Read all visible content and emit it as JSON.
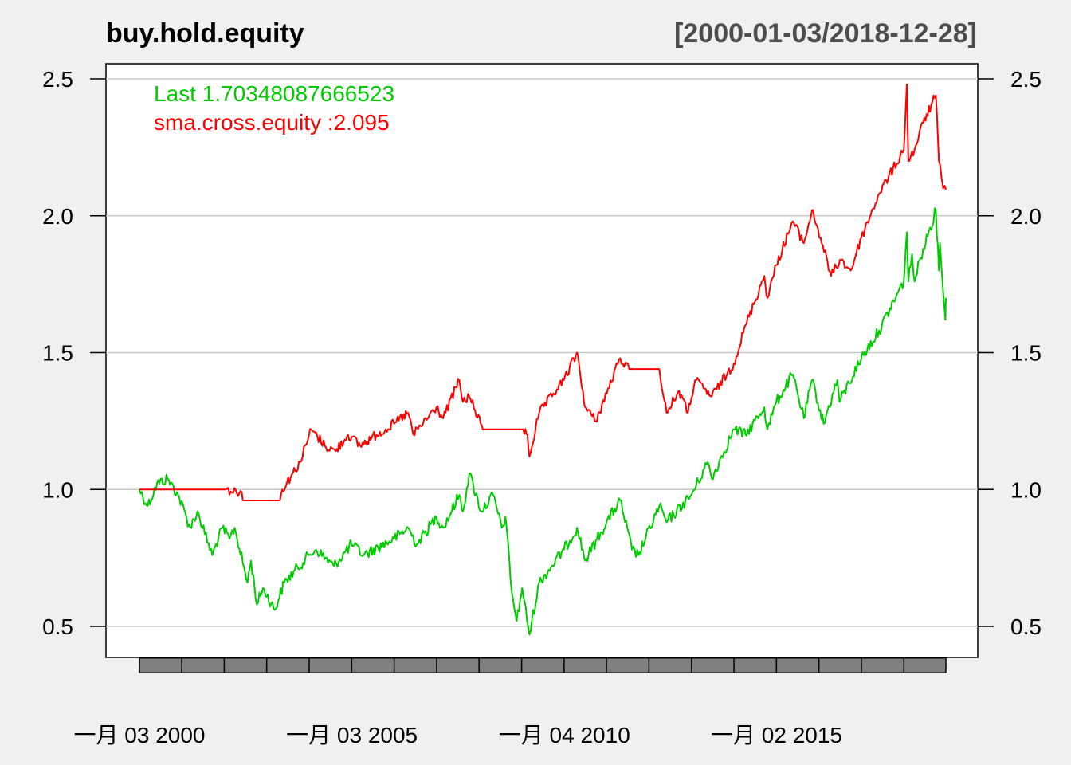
{
  "chart_data": {
    "type": "line",
    "title": "buy.hold.equity",
    "date_range_label": "[2000-01-03/2018-12-28]",
    "x_start": "2000-01-03",
    "x_end": "2018-12-28",
    "ylim": [
      0.36,
      2.58
    ],
    "y_ticks": [
      "0.5",
      "1.0",
      "1.5",
      "2.0",
      "2.5"
    ],
    "y_tick_values": [
      0.5,
      1.0,
      1.5,
      2.0,
      2.5
    ],
    "x_tick_labels": [
      {
        "label": "一月 03 2000",
        "date": "2000-01-03"
      },
      {
        "label": "一月 03 2005",
        "date": "2005-01-03"
      },
      {
        "label": "一月 04 2010",
        "date": "2010-01-04"
      },
      {
        "label": "一月 02 2015",
        "date": "2015-01-02"
      }
    ],
    "grid": true,
    "legend": [
      {
        "text": "Last 1.70348087666523",
        "color": "#00cc00"
      },
      {
        "text": "sma.cross.equity :2.095",
        "color": "#ff0000"
      }
    ],
    "series": [
      {
        "name": "buy.hold.equity",
        "color": "#00cc00",
        "points": [
          [
            "2000-01-03",
            1.0
          ],
          [
            "2000-03-15",
            0.94
          ],
          [
            "2000-06-01",
            1.02
          ],
          [
            "2000-09-01",
            1.04
          ],
          [
            "2000-12-01",
            0.98
          ],
          [
            "2001-03-15",
            0.86
          ],
          [
            "2001-05-15",
            0.92
          ],
          [
            "2001-09-20",
            0.76
          ],
          [
            "2001-12-15",
            0.86
          ],
          [
            "2002-02-15",
            0.82
          ],
          [
            "2002-04-01",
            0.86
          ],
          [
            "2002-07-20",
            0.66
          ],
          [
            "2002-08-20",
            0.74
          ],
          [
            "2002-10-09",
            0.58
          ],
          [
            "2002-12-01",
            0.64
          ],
          [
            "2003-03-11",
            0.56
          ],
          [
            "2003-06-01",
            0.66
          ],
          [
            "2003-12-31",
            0.76
          ],
          [
            "2004-03-01",
            0.78
          ],
          [
            "2004-08-01",
            0.72
          ],
          [
            "2004-12-31",
            0.8
          ],
          [
            "2005-04-15",
            0.76
          ],
          [
            "2005-12-31",
            0.82
          ],
          [
            "2006-05-01",
            0.86
          ],
          [
            "2006-07-15",
            0.8
          ],
          [
            "2006-12-31",
            0.9
          ],
          [
            "2007-02-27",
            0.86
          ],
          [
            "2007-07-15",
            0.98
          ],
          [
            "2007-08-15",
            0.92
          ],
          [
            "2007-10-09",
            1.06
          ],
          [
            "2008-01-20",
            0.92
          ],
          [
            "2008-05-01",
            0.98
          ],
          [
            "2008-07-15",
            0.86
          ],
          [
            "2008-08-15",
            0.9
          ],
          [
            "2008-10-10",
            0.62
          ],
          [
            "2008-11-20",
            0.52
          ],
          [
            "2009-01-06",
            0.64
          ],
          [
            "2009-03-09",
            0.47
          ],
          [
            "2009-06-01",
            0.66
          ],
          [
            "2009-12-31",
            0.78
          ],
          [
            "2010-04-23",
            0.86
          ],
          [
            "2010-07-02",
            0.74
          ],
          [
            "2010-12-31",
            0.88
          ],
          [
            "2011-04-29",
            0.96
          ],
          [
            "2011-08-08",
            0.78
          ],
          [
            "2011-10-03",
            0.76
          ],
          [
            "2012-03-30",
            0.94
          ],
          [
            "2012-06-01",
            0.88
          ],
          [
            "2012-12-31",
            0.98
          ],
          [
            "2013-05-21",
            1.1
          ],
          [
            "2013-06-24",
            1.04
          ],
          [
            "2013-12-31",
            1.22
          ],
          [
            "2014-04-11",
            1.2
          ],
          [
            "2014-09-19",
            1.3
          ],
          [
            "2014-10-15",
            1.22
          ],
          [
            "2014-12-31",
            1.32
          ],
          [
            "2015-05-21",
            1.42
          ],
          [
            "2015-08-25",
            1.26
          ],
          [
            "2015-11-03",
            1.4
          ],
          [
            "2016-02-11",
            1.24
          ],
          [
            "2016-06-08",
            1.4
          ],
          [
            "2016-06-27",
            1.32
          ],
          [
            "2016-12-31",
            1.48
          ],
          [
            "2017-06-01",
            1.58
          ],
          [
            "2017-12-31",
            1.76
          ],
          [
            "2018-01-26",
            1.94
          ],
          [
            "2018-02-08",
            1.76
          ],
          [
            "2018-03-12",
            1.86
          ],
          [
            "2018-04-02",
            1.76
          ],
          [
            "2018-06-15",
            1.88
          ],
          [
            "2018-10-03",
            2.02
          ],
          [
            "2018-10-29",
            1.8
          ],
          [
            "2018-11-07",
            1.9
          ],
          [
            "2018-12-24",
            1.62
          ],
          [
            "2018-12-28",
            1.7
          ]
        ]
      },
      {
        "name": "sma.cross.equity",
        "color": "#ff0000",
        "points": [
          [
            "2000-01-03",
            1.0
          ],
          [
            "2002-01-15",
            1.0
          ],
          [
            "2002-06-01",
            0.99
          ],
          [
            "2002-06-10",
            0.96
          ],
          [
            "2003-04-25",
            0.96
          ],
          [
            "2003-05-15",
            1.0
          ],
          [
            "2003-10-15",
            1.1
          ],
          [
            "2004-01-20",
            1.22
          ],
          [
            "2004-05-15",
            1.16
          ],
          [
            "2004-08-15",
            1.14
          ],
          [
            "2004-12-01",
            1.2
          ],
          [
            "2005-03-15",
            1.16
          ],
          [
            "2005-08-01",
            1.2
          ],
          [
            "2005-12-31",
            1.24
          ],
          [
            "2006-05-01",
            1.28
          ],
          [
            "2006-06-15",
            1.2
          ],
          [
            "2006-12-31",
            1.3
          ],
          [
            "2007-02-27",
            1.26
          ],
          [
            "2007-07-15",
            1.4
          ],
          [
            "2007-08-15",
            1.32
          ],
          [
            "2007-10-09",
            1.34
          ],
          [
            "2008-01-15",
            1.24
          ],
          [
            "2008-02-01",
            1.22
          ],
          [
            "2009-01-15",
            1.22
          ],
          [
            "2009-02-20",
            1.2
          ],
          [
            "2009-03-09",
            1.12
          ],
          [
            "2009-06-01",
            1.28
          ],
          [
            "2009-12-31",
            1.4
          ],
          [
            "2010-04-23",
            1.5
          ],
          [
            "2010-07-02",
            1.3
          ],
          [
            "2010-10-01",
            1.25
          ],
          [
            "2011-04-29",
            1.48
          ],
          [
            "2011-07-15",
            1.44
          ],
          [
            "2011-07-20",
            1.44
          ],
          [
            "2012-03-30",
            1.44
          ],
          [
            "2012-06-01",
            1.28
          ],
          [
            "2012-09-15",
            1.36
          ],
          [
            "2012-12-01",
            1.28
          ],
          [
            "2013-02-01",
            1.4
          ],
          [
            "2013-06-24",
            1.34
          ],
          [
            "2013-12-31",
            1.46
          ],
          [
            "2014-04-11",
            1.6
          ],
          [
            "2014-09-19",
            1.78
          ],
          [
            "2014-10-15",
            1.7
          ],
          [
            "2014-12-31",
            1.82
          ],
          [
            "2015-05-21",
            1.98
          ],
          [
            "2015-08-25",
            1.9
          ],
          [
            "2015-11-03",
            2.02
          ],
          [
            "2016-01-15",
            1.92
          ],
          [
            "2016-04-15",
            1.78
          ],
          [
            "2016-07-01",
            1.84
          ],
          [
            "2016-10-01",
            1.8
          ],
          [
            "2016-12-31",
            1.92
          ],
          [
            "2017-06-01",
            2.08
          ],
          [
            "2017-12-31",
            2.24
          ],
          [
            "2018-01-26",
            2.48
          ],
          [
            "2018-02-08",
            2.2
          ],
          [
            "2018-04-02",
            2.24
          ],
          [
            "2018-06-15",
            2.34
          ],
          [
            "2018-10-03",
            2.44
          ],
          [
            "2018-10-29",
            2.2
          ],
          [
            "2018-11-20",
            2.14
          ],
          [
            "2018-12-05",
            2.1
          ],
          [
            "2018-12-28",
            2.095
          ]
        ]
      }
    ]
  }
}
